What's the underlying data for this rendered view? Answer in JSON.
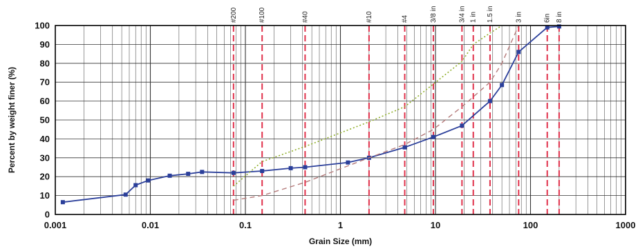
{
  "chart_data": {
    "type": "line",
    "title": "",
    "xlabel": "Grain Size  (mm)",
    "ylabel": "Percent by weight finer (%)",
    "x_scale": "log",
    "xlim": [
      0.001,
      1000
    ],
    "ylim": [
      0,
      100
    ],
    "grid": true,
    "x_tick_labels": [
      "0.001",
      "0.01",
      "0.1",
      "1",
      "10",
      "100",
      "1000"
    ],
    "y_tick_labels": [
      "0",
      "10",
      "20",
      "30",
      "40",
      "50",
      "60",
      "70",
      "80",
      "90",
      "100"
    ],
    "sieves": [
      {
        "label": "#200",
        "size": 0.075
      },
      {
        "label": "#100",
        "size": 0.15
      },
      {
        "label": "#40",
        "size": 0.425
      },
      {
        "label": "#10",
        "size": 2.0
      },
      {
        "label": "#4",
        "size": 4.75
      },
      {
        "label": "3/8 in",
        "size": 9.5
      },
      {
        "label": "3/4 in",
        "size": 19.0
      },
      {
        "label": "1 in",
        "size": 25.0
      },
      {
        "label": "1.5 in",
        "size": 37.5
      },
      {
        "label": "3 in",
        "size": 75.0
      },
      {
        "label": "6in",
        "size": 150.0
      },
      {
        "label": "8 in",
        "size": 200.0
      }
    ],
    "series": [
      {
        "style": "solid-marker",
        "color": "#2b3f9a",
        "points": [
          [
            0.0012,
            6.5
          ],
          [
            0.0055,
            10.5
          ],
          [
            0.007,
            15.5
          ],
          [
            0.0095,
            18
          ],
          [
            0.016,
            20.5
          ],
          [
            0.025,
            21.5
          ],
          [
            0.035,
            22.5
          ],
          [
            0.075,
            22
          ],
          [
            0.15,
            23
          ],
          [
            0.3,
            24.5
          ],
          [
            0.425,
            25
          ],
          [
            1.2,
            27.5
          ],
          [
            2.0,
            30
          ],
          [
            4.75,
            35.5
          ],
          [
            9.5,
            41
          ],
          [
            19.0,
            47
          ],
          [
            37.5,
            60
          ],
          [
            50.0,
            68.5
          ],
          [
            75.0,
            86
          ],
          [
            150.0,
            99
          ],
          [
            200.0,
            99.5
          ]
        ]
      },
      {
        "style": "dotted",
        "color": "#8fae2a",
        "points": [
          [
            0.075,
            15
          ],
          [
            0.15,
            28
          ],
          [
            0.425,
            36
          ],
          [
            2.0,
            49
          ],
          [
            4.75,
            57
          ],
          [
            9.5,
            69
          ],
          [
            19.0,
            81
          ],
          [
            25.0,
            90
          ],
          [
            37.5,
            96
          ],
          [
            50.0,
            100
          ]
        ]
      },
      {
        "style": "dashed",
        "color": "#b57a7a",
        "points": [
          [
            0.075,
            7.5
          ],
          [
            0.15,
            10
          ],
          [
            0.425,
            17
          ],
          [
            2.0,
            30
          ],
          [
            4.75,
            37
          ],
          [
            9.5,
            45
          ],
          [
            19.0,
            57
          ],
          [
            37.5,
            70
          ],
          [
            50.0,
            80
          ],
          [
            75.0,
            100
          ]
        ]
      }
    ],
    "colors": {
      "sieve_line": "#e0304a",
      "grid": "#333333",
      "axis": "#000000"
    }
  }
}
